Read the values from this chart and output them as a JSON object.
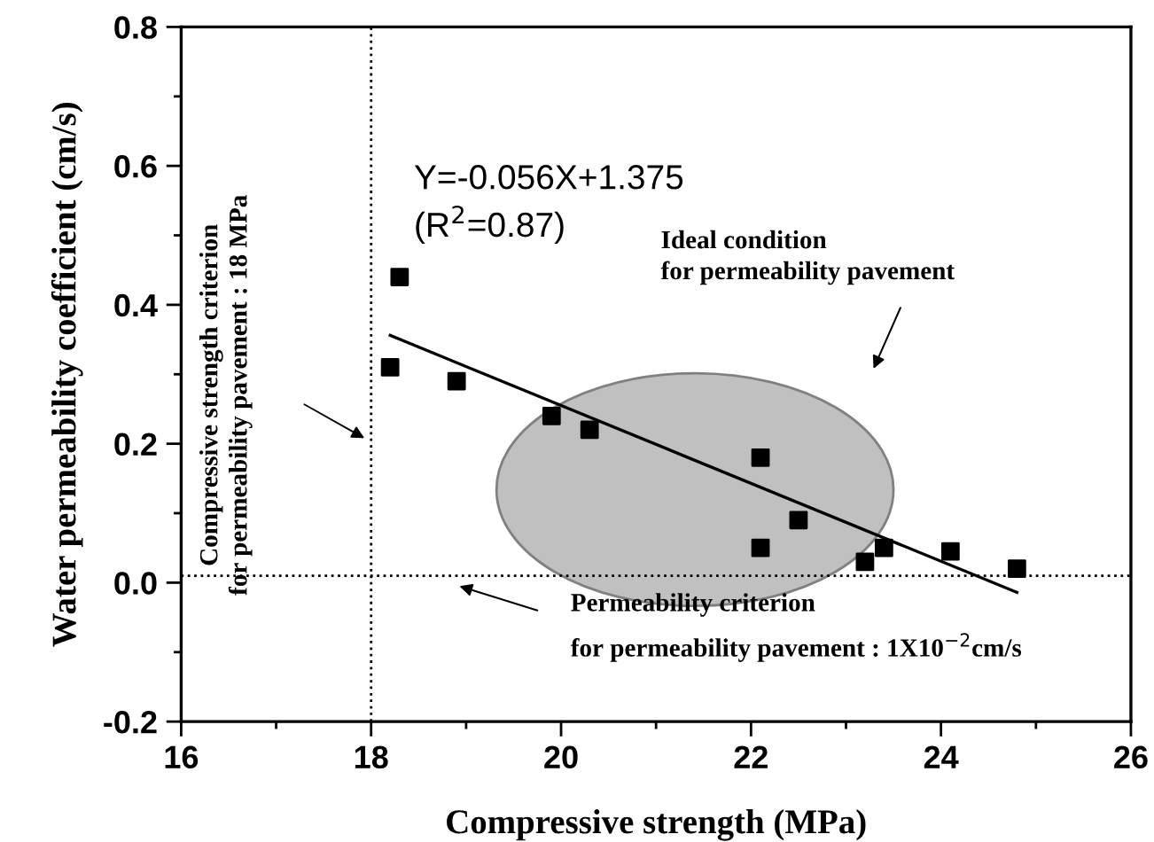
{
  "chart_data": {
    "type": "scatter",
    "xlabel": "Compressive strength (MPa)",
    "ylabel": "Water permeability coefficient (cm/s)",
    "xlim": [
      16,
      26
    ],
    "xticks": [
      16,
      18,
      20,
      22,
      24,
      26
    ],
    "ylim": [
      -0.2,
      0.8
    ],
    "yticks": [
      {
        "value": -0.2,
        "label": "-0.2"
      },
      {
        "value": 0.0,
        "label": "0.0"
      },
      {
        "value": 0.2,
        "label": "0.2"
      },
      {
        "value": 0.4,
        "label": "0.4"
      },
      {
        "value": 0.6,
        "label": "0.6"
      },
      {
        "value": 0.8,
        "label": "0.8"
      }
    ],
    "grid": false,
    "legend": false,
    "series": [
      {
        "type": "scatter",
        "color": "#000000",
        "marker": "square",
        "x": [
          18.2,
          18.3,
          18.9,
          19.9,
          20.3,
          22.1,
          22.1,
          22.5,
          23.2,
          23.4,
          24.1,
          24.8
        ],
        "values": [
          0.31,
          0.44,
          0.29,
          0.24,
          0.22,
          0.18,
          0.05,
          0.09,
          0.03,
          0.05,
          0.045,
          0.02
        ]
      },
      {
        "type": "line",
        "color": "#000000",
        "marker": "none",
        "line_style": "solid",
        "x": [
          18.2,
          24.8
        ],
        "values": [
          0.356,
          -0.014
        ]
      }
    ],
    "ref_lines": [
      {
        "axis": "x",
        "value": 18,
        "color": "#000000",
        "line_style": "dotted"
      },
      {
        "axis": "y",
        "value": 0.01,
        "color": "#000000",
        "line_style": "dotted"
      }
    ],
    "annotations": [
      "Y=-0.056X+1.375\n(R$^{2}$=0.87)",
      "Ideal condition\nfor permeability pavement",
      "Compressive strength criterion\nfor permeability pavement : 18 MPa",
      "Permeability criterion\nfor permeability pavement : 1X10$^{−2}$cm/s"
    ]
  }
}
